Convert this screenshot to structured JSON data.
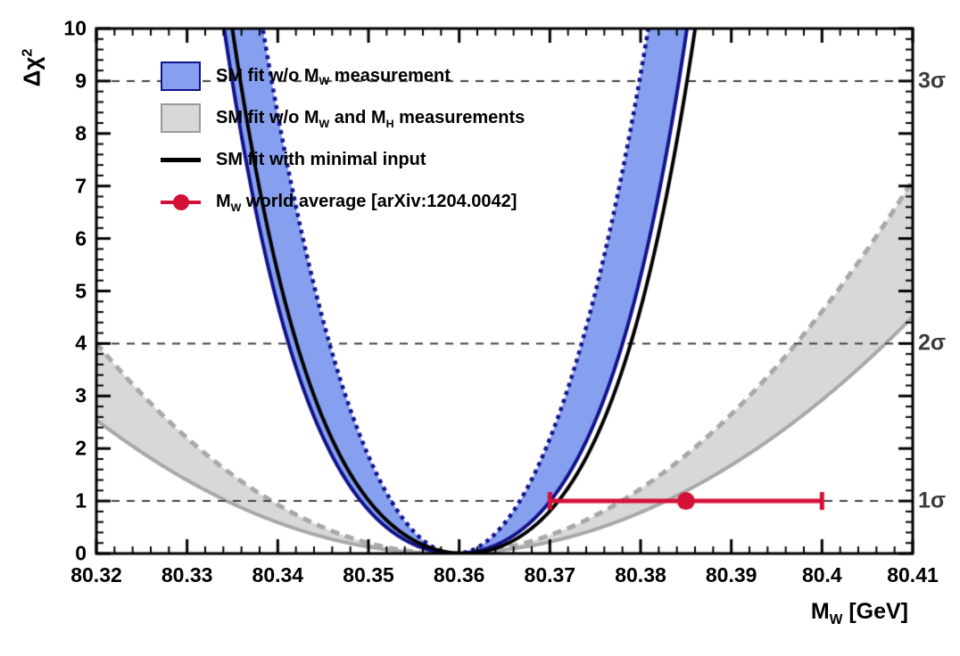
{
  "figure": {
    "background": "#ffffff",
    "frame_color": "#000000"
  },
  "x_axis": {
    "title": "M_W [GeV]",
    "title_segments": [
      {
        "t": "M"
      },
      {
        "t": "W",
        "sub": true
      },
      {
        "t": " [GeV]"
      }
    ],
    "min": 80.32,
    "max": 80.41,
    "tick_values": [
      80.32,
      80.33,
      80.34,
      80.35,
      80.36,
      80.37,
      80.38,
      80.39,
      80.4,
      80.41
    ],
    "tick_labels": [
      "80.32",
      "80.33",
      "80.34",
      "80.35",
      "80.36",
      "80.37",
      "80.38",
      "80.39",
      "80.4",
      "80.41"
    ],
    "minor_step": 0.002
  },
  "y_axis": {
    "title": "Δχ²",
    "title_segments": [
      {
        "t": "Δχ"
      },
      {
        "t": "2",
        "sup": true
      }
    ],
    "min": 0,
    "max": 10,
    "tick_values": [
      0,
      1,
      2,
      3,
      4,
      5,
      6,
      7,
      8,
      9,
      10
    ],
    "tick_labels": [
      "0",
      "1",
      "2",
      "3",
      "4",
      "5",
      "6",
      "7",
      "8",
      "9",
      "10"
    ],
    "minor_step": 0.2
  },
  "gridlines": {
    "color": "#3f3f3f",
    "dash": [
      9,
      8
    ],
    "width": 2,
    "levels": [
      {
        "y": 1,
        "label": "1σ"
      },
      {
        "y": 4,
        "label": "2σ"
      },
      {
        "y": 9,
        "label": "3σ"
      }
    ],
    "label_color": "#3c3c3c"
  },
  "legend": {
    "rows": [
      {
        "type": "band",
        "fill": "#86a0ef",
        "border": "#12128a",
        "segments": [
          {
            "t": "SM fit w/o M"
          },
          {
            "t": "W",
            "sub": true
          },
          {
            "t": " measurement"
          }
        ]
      },
      {
        "type": "band",
        "fill": "#d8d8d8",
        "border": "#9a9a9a",
        "segments": [
          {
            "t": "SM fit w/o M"
          },
          {
            "t": "W",
            "sub": true
          },
          {
            "t": " and M"
          },
          {
            "t": "H",
            "sub": true
          },
          {
            "t": " measurements"
          }
        ]
      },
      {
        "type": "line",
        "color": "#000000",
        "segments": [
          {
            "t": "SM fit with minimal input"
          }
        ]
      },
      {
        "type": "marker",
        "color": "#d51037",
        "segments": [
          {
            "t": "M"
          },
          {
            "t": "W",
            "sub": true
          },
          {
            "t": " world average [arXiv:1204.0042]"
          }
        ]
      }
    ]
  },
  "chart_data": {
    "type": "line",
    "title": "",
    "xlabel": "M_W [GeV]",
    "ylabel": "Δχ²",
    "xlim": [
      80.32,
      80.41
    ],
    "ylim": [
      0,
      10
    ],
    "grid": "horizontal dashed at Δχ²=1,4,9 labelled 1σ,2σ,3σ on right side",
    "legend_position": "top-left inside frame",
    "curve_model": "delta_chi2 = a*(mw-min_mw)^2 + b*(mw-min_mw)^4",
    "series": [
      {
        "name": "SM fit w/o M_W measurement",
        "style": "band",
        "fill": "#86a0ef",
        "edge_color": "#12128a",
        "min_mw": 80.3596,
        "outer_edge": {
          "a": 7940,
          "b": 11400000,
          "width": 4,
          "dash": []
        },
        "inner_edge": {
          "a": 19620,
          "b": 5580000,
          "width": 4.5,
          "dash": [
            4.5,
            5
          ]
        }
      },
      {
        "name": "SM fit w/o M_W and M_H measurements",
        "style": "band",
        "fill": "#d8d8d8",
        "edge_color": "#a8a8a8",
        "min_mw": 80.3586,
        "outer_edge": {
          "a": 1707,
          "b": 0,
          "width": 4,
          "dash": []
        },
        "inner_edge": {
          "a": 2690,
          "b": 0,
          "width": 5,
          "dash": [
            10,
            7
          ]
        }
      },
      {
        "name": "SM fit with minimal input",
        "style": "line",
        "color": "#000000",
        "min_mw": 80.3605,
        "a": 7940,
        "b": 11400000,
        "width": 4
      }
    ],
    "measurement": {
      "name": "M_W world average",
      "reference": "arXiv:1204.0042",
      "mw": 80.385,
      "uncertainty": 0.015,
      "plotted_at_delta_chi2": 1,
      "color": "#d51037",
      "line_width": 5,
      "cap_half_height": 10,
      "marker_radius": 10
    }
  }
}
